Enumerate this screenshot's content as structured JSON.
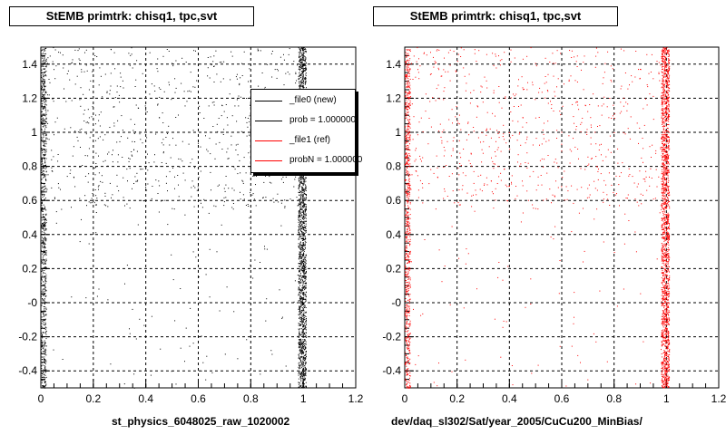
{
  "chart_data": [
    {
      "type": "scatter",
      "title": "StEMB primtrk: chisq1, tpc,svt",
      "xlabel": "st_physics_6048025_raw_1020002",
      "ylabel": "",
      "xlim": [
        0,
        1.2
      ],
      "ylim": [
        -0.5,
        1.5
      ],
      "x_ticks": [
        "0",
        "0.2",
        "0.4",
        "0.6",
        "0.8",
        "1",
        "1.2"
      ],
      "y_ticks": [
        "-0.4",
        "-0.2",
        "-0",
        "0.2",
        "0.4",
        "0.6",
        "0.8",
        "1",
        "1.2",
        "1.4"
      ],
      "grid": true,
      "series": [
        {
          "name": "_file0 (new)",
          "color": "#000000",
          "description_bands": [
            {
              "x_range": [
                0.0,
                0.02
              ],
              "y_range": [
                -0.5,
                1.5
              ],
              "density": "high"
            },
            {
              "x_range": [
                0.98,
                1.01
              ],
              "y_range": [
                -0.5,
                1.5
              ],
              "density": "very high"
            },
            {
              "x_range": [
                0.0,
                1.0
              ],
              "y_range": [
                0.55,
                1.5
              ],
              "density": "medium"
            },
            {
              "x_range": [
                0.0,
                1.0
              ],
              "y_range": [
                -0.5,
                0.55
              ],
              "density": "sparse"
            }
          ]
        }
      ],
      "legend": {
        "position": "top-right",
        "entries": [
          {
            "label": "_file0 (new)",
            "color": "#000000"
          },
          {
            "label": "prob = 1.000000",
            "color": "#000000"
          },
          {
            "label": "_file1 (ref)",
            "color": "#ff0000"
          },
          {
            "label": "probN = 1.000000",
            "color": "#ff0000"
          }
        ]
      }
    },
    {
      "type": "scatter",
      "title": "StEMB primtrk: chisq1, tpc,svt",
      "xlabel": "dev/daq_sl302/Sat/year_2005/CuCu200_MinBias/",
      "ylabel": "",
      "xlim": [
        0,
        1.2
      ],
      "ylim": [
        -0.5,
        1.5
      ],
      "x_ticks": [
        "0",
        "0.2",
        "0.4",
        "0.6",
        "0.8",
        "1",
        "1.2"
      ],
      "y_ticks": [
        "-0.4",
        "-0.2",
        "-0",
        "0.2",
        "0.4",
        "0.6",
        "0.8",
        "1",
        "1.2",
        "1.4"
      ],
      "grid": true,
      "series": [
        {
          "name": "_file1 (ref)",
          "color": "#ff0000",
          "description_bands": [
            {
              "x_range": [
                0.0,
                0.02
              ],
              "y_range": [
                -0.5,
                1.5
              ],
              "density": "high"
            },
            {
              "x_range": [
                0.98,
                1.01
              ],
              "y_range": [
                -0.5,
                1.5
              ],
              "density": "very high"
            },
            {
              "x_range": [
                0.0,
                1.0
              ],
              "y_range": [
                0.55,
                1.5
              ],
              "density": "medium"
            },
            {
              "x_range": [
                0.0,
                1.0
              ],
              "y_range": [
                -0.5,
                0.55
              ],
              "density": "sparse"
            }
          ]
        }
      ]
    }
  ]
}
